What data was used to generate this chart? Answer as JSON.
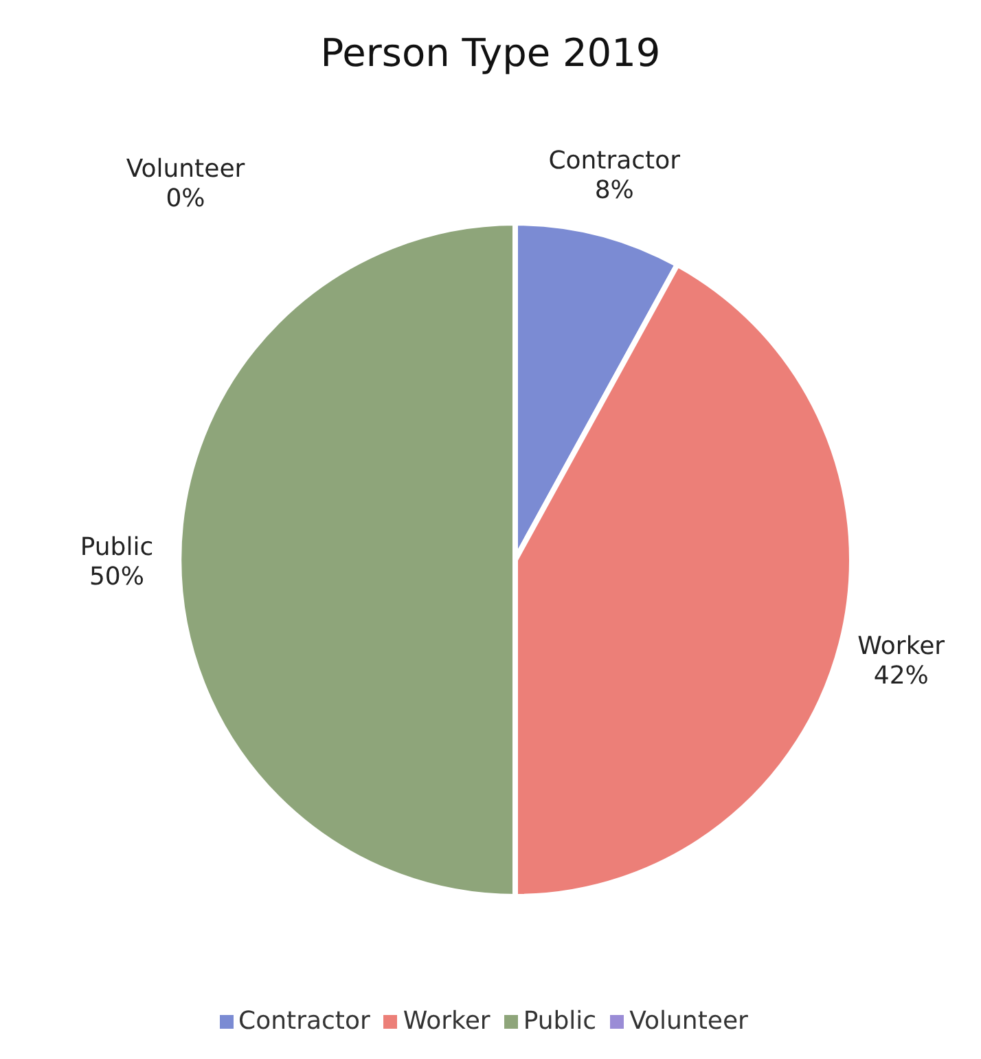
{
  "chart_data": {
    "type": "pie",
    "title": "Person Type 2019",
    "categories": [
      "Contractor",
      "Worker",
      "Public",
      "Volunteer"
    ],
    "values": [
      8,
      42,
      50,
      0
    ],
    "colors": [
      "#7b8bd3",
      "#ec7f78",
      "#8ea57a",
      "#9a8cd6"
    ],
    "data_labels": true,
    "value_labels": [
      "8%",
      "42%",
      "50%",
      "0%"
    ],
    "legend": "bottom"
  }
}
